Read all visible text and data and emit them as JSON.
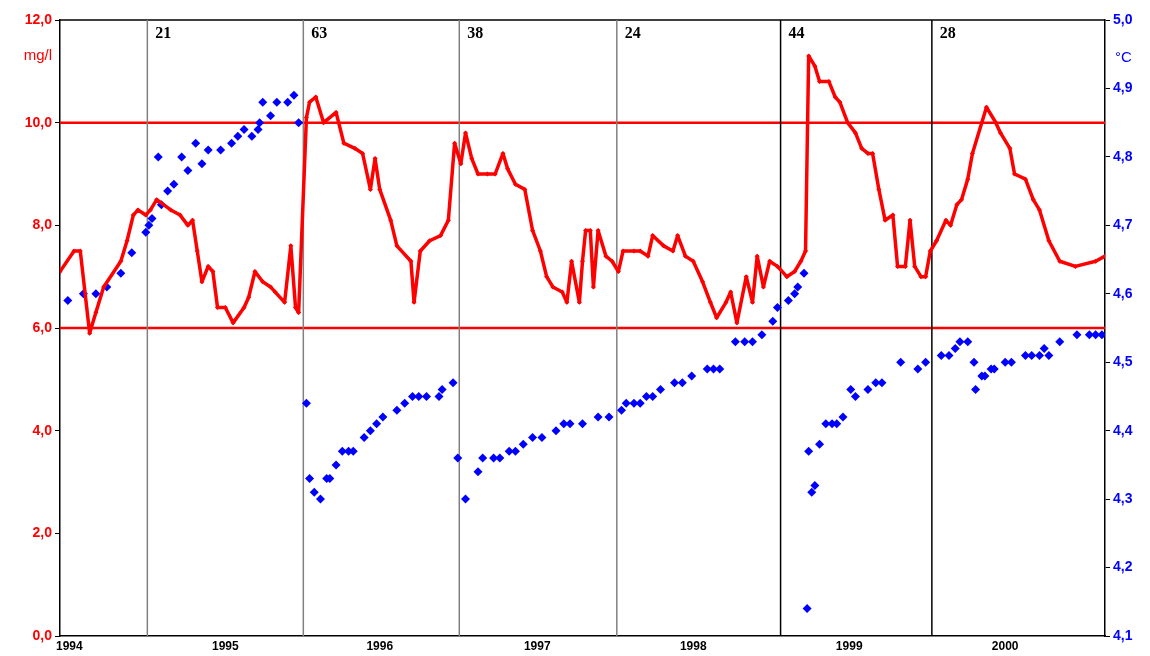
{
  "chart_data": {
    "type": "line",
    "ylabel": "mg/l",
    "y2label": "°C",
    "xlim": [
      1994.44,
      2001.14
    ],
    "xticks": [
      {
        "value": 1994.5,
        "label": "1994"
      },
      {
        "value": 1995.5,
        "label": "1995"
      },
      {
        "value": 1996.49,
        "label": "1996"
      },
      {
        "value": 1997.5,
        "label": "1997"
      },
      {
        "value": 1998.5,
        "label": "1998"
      },
      {
        "value": 1999.5,
        "label": "1999"
      },
      {
        "value": 2000.5,
        "label": "2000"
      }
    ],
    "annotations": [
      {
        "text": "21",
        "x": 1995,
        "y": 12
      },
      {
        "text": "63",
        "x": 1996,
        "y": 12
      },
      {
        "text": "38",
        "x": 1997,
        "y": 12
      },
      {
        "text": "24",
        "x": 1998.01,
        "y": 12
      },
      {
        "text": "44",
        "x": 1999.06,
        "y": 12
      },
      {
        "text": "28",
        "x": 2000.03,
        "y": 12
      }
    ],
    "ylim": [
      0,
      12
    ],
    "yticks": [
      {
        "value": 0,
        "label": "0,0"
      },
      {
        "value": 2,
        "label": "2,0"
      },
      {
        "value": 4,
        "label": "4,0"
      },
      {
        "value": 6,
        "label": "6,0"
      },
      {
        "value": 8,
        "label": "8,0"
      },
      {
        "value": 10,
        "label": "10,0"
      },
      {
        "value": 12,
        "label": "12,0"
      }
    ],
    "y2lim": [
      4.1,
      5.0
    ],
    "y2ticks": [
      {
        "value": 4.1,
        "label": "4,1"
      },
      {
        "value": 4.2,
        "label": "4,2"
      },
      {
        "value": 4.3,
        "label": "4,3"
      },
      {
        "value": 4.4,
        "label": "4,4"
      },
      {
        "value": 4.5,
        "label": "4,5"
      },
      {
        "value": 4.6,
        "label": "4,6"
      },
      {
        "value": 4.7,
        "label": "4,7"
      },
      {
        "value": 4.8,
        "label": "4,8"
      },
      {
        "value": 4.9,
        "label": "4,9"
      },
      {
        "value": 5.0,
        "label": "5,0"
      }
    ],
    "grid": false,
    "legend": false,
    "ref_lines": [
      {
        "axis": "y",
        "value": 10,
        "color": "#ff0000"
      },
      {
        "axis": "y",
        "value": 6,
        "color": "#ff0000"
      },
      {
        "axis": "x",
        "value": 1995,
        "color": "#808080"
      },
      {
        "axis": "x",
        "value": 1996,
        "color": "#808080"
      },
      {
        "axis": "x",
        "value": 1997,
        "color": "#808080"
      },
      {
        "axis": "x",
        "value": 1998.01,
        "color": "#808080"
      },
      {
        "axis": "x",
        "value": 1999.06,
        "color": "#000000"
      },
      {
        "axis": "x",
        "value": 2000.03,
        "color": "#000000"
      }
    ],
    "series": [
      {
        "axis": "y",
        "color": "#ff0000",
        "marker": "diamond",
        "line_style": "solid",
        "x": [
          1994.44,
          1994.53,
          1994.57,
          1994.63,
          1994.67,
          1994.72,
          1994.83,
          1994.87,
          1994.91,
          1994.94,
          1994.99,
          1995.02,
          1995.06,
          1995.15,
          1995.21,
          1995.26,
          1995.29,
          1995.32,
          1995.35,
          1995.39,
          1995.42,
          1995.45,
          1995.5,
          1995.55,
          1995.62,
          1995.65,
          1995.69,
          1995.74,
          1995.79,
          1995.82,
          1995.88,
          1995.92,
          1995.95,
          1995.97,
          1996.02,
          1996.04,
          1996.08,
          1996.13,
          1996.21,
          1996.26,
          1996.33,
          1996.38,
          1996.43,
          1996.46,
          1996.49,
          1996.56,
          1996.6,
          1996.69,
          1996.71,
          1996.75,
          1996.81,
          1996.88,
          1996.93,
          1996.97,
          1997.01,
          1997.04,
          1997.08,
          1997.12,
          1997.18,
          1997.23,
          1997.28,
          1997.31,
          1997.36,
          1997.42,
          1997.47,
          1997.52,
          1997.56,
          1997.6,
          1997.66,
          1997.69,
          1997.72,
          1997.77,
          1997.79,
          1997.81,
          1997.84,
          1997.86,
          1997.89,
          1997.94,
          1997.98,
          1998.02,
          1998.05,
          1998.12,
          1998.16,
          1998.21,
          1998.24,
          1998.31,
          1998.37,
          1998.4,
          1998.45,
          1998.5,
          1998.56,
          1998.61,
          1998.65,
          1998.71,
          1998.74,
          1998.78,
          1998.84,
          1998.88,
          1998.91,
          1998.95,
          1998.99,
          1999.04,
          1999.1,
          1999.15,
          1999.19,
          1999.22,
          1999.24,
          1999.28,
          1999.31,
          1999.37,
          1999.41,
          1999.44,
          1999.49,
          1999.54,
          1999.58,
          1999.62,
          1999.65,
          1999.69,
          1999.73,
          1999.78,
          1999.81,
          1999.86,
          1999.89,
          1999.92,
          1999.96,
          1999.99,
          2000.02,
          2000.06,
          2000.12,
          2000.15,
          2000.19,
          2000.22,
          2000.26,
          2000.29,
          2000.38,
          2000.44,
          2000.47,
          2000.53,
          2000.56,
          2000.63,
          2000.68,
          2000.72,
          2000.78,
          2000.85,
          2000.95,
          2001.08,
          2001.14
        ],
        "values": [
          7.1,
          7.5,
          7.5,
          5.9,
          6.3,
          6.8,
          7.3,
          7.7,
          8.2,
          8.3,
          8.2,
          8.3,
          8.5,
          8.3,
          8.2,
          8.0,
          8.1,
          7.5,
          6.9,
          7.2,
          7.1,
          6.4,
          6.4,
          6.1,
          6.4,
          6.6,
          7.1,
          6.9,
          6.8,
          6.7,
          6.5,
          7.6,
          6.4,
          6.3,
          10.1,
          10.4,
          10.5,
          10.0,
          10.2,
          9.6,
          9.5,
          9.4,
          8.7,
          9.3,
          8.7,
          8.1,
          7.6,
          7.3,
          6.5,
          7.5,
          7.7,
          7.8,
          8.1,
          9.6,
          9.2,
          9.8,
          9.3,
          9.0,
          9.0,
          9.0,
          9.4,
          9.1,
          8.8,
          8.7,
          7.9,
          7.5,
          7.0,
          6.8,
          6.7,
          6.5,
          7.3,
          6.5,
          7.3,
          7.9,
          7.9,
          6.8,
          7.9,
          7.4,
          7.3,
          7.1,
          7.5,
          7.5,
          7.5,
          7.4,
          7.8,
          7.6,
          7.5,
          7.8,
          7.4,
          7.3,
          6.9,
          6.5,
          6.2,
          6.5,
          6.7,
          6.1,
          7.0,
          6.5,
          7.4,
          6.8,
          7.3,
          7.2,
          7.0,
          7.1,
          7.3,
          7.5,
          11.3,
          11.1,
          10.8,
          10.8,
          10.5,
          10.4,
          10.0,
          9.8,
          9.5,
          9.4,
          9.4,
          8.7,
          8.1,
          8.2,
          7.2,
          7.2,
          8.1,
          7.2,
          7.0,
          7.0,
          7.5,
          7.7,
          8.1,
          8.0,
          8.4,
          8.5,
          8.9,
          9.4,
          10.3,
          10.0,
          9.8,
          9.5,
          9.0,
          8.9,
          8.5,
          8.3,
          7.7,
          7.3,
          7.2,
          7.3,
          7.4
        ]
      },
      {
        "type": "scatter",
        "axis": "y2",
        "color": "#0000ff",
        "marker": "diamond",
        "x": [
          1994.49,
          1994.59,
          1994.67,
          1994.74,
          1994.83,
          1994.9,
          1994.99,
          1995.01,
          1995.03,
          1995.07,
          1995.09,
          1995.13,
          1995.17,
          1995.22,
          1995.26,
          1995.31,
          1995.35,
          1995.39,
          1995.47,
          1995.54,
          1995.58,
          1995.62,
          1995.67,
          1995.71,
          1995.72,
          1995.74,
          1995.79,
          1995.83,
          1995.9,
          1995.94,
          1995.97,
          1996.02,
          1996.04,
          1996.07,
          1996.11,
          1996.15,
          1996.17,
          1996.21,
          1996.25,
          1996.29,
          1996.32,
          1996.39,
          1996.43,
          1996.47,
          1996.51,
          1996.6,
          1996.65,
          1996.7,
          1996.74,
          1996.79,
          1996.87,
          1996.89,
          1996.96,
          1996.99,
          1997.04,
          1997.12,
          1997.15,
          1997.22,
          1997.26,
          1997.32,
          1997.36,
          1997.41,
          1997.47,
          1997.53,
          1997.62,
          1997.67,
          1997.71,
          1997.79,
          1997.89,
          1997.96,
          1998.04,
          1998.07,
          1998.12,
          1998.16,
          1998.2,
          1998.24,
          1998.29,
          1998.38,
          1998.43,
          1998.49,
          1998.59,
          1998.63,
          1998.67,
          1998.77,
          1998.83,
          1998.88,
          1998.94,
          1999.01,
          1999.04,
          1999.11,
          1999.15,
          1999.17,
          1999.21,
          1999.23,
          1999.24,
          1999.26,
          1999.28,
          1999.31,
          1999.35,
          1999.39,
          1999.42,
          1999.46,
          1999.51,
          1999.54,
          1999.62,
          1999.67,
          1999.71,
          1999.83,
          1999.94,
          1999.99,
          2000.09,
          2000.14,
          2000.18,
          2000.21,
          2000.26,
          2000.3,
          2000.31,
          2000.35,
          2000.37,
          2000.41,
          2000.43,
          2000.5,
          2000.54,
          2000.63,
          2000.67,
          2000.72,
          2000.75,
          2000.78,
          2000.85,
          2000.96,
          2001.04,
          2001.08,
          2001.12
        ],
        "values": [
          4.59,
          4.6,
          4.6,
          4.61,
          4.63,
          4.66,
          4.69,
          4.7,
          4.71,
          4.8,
          4.73,
          4.75,
          4.76,
          4.8,
          4.78,
          4.82,
          4.79,
          4.81,
          4.81,
          4.82,
          4.83,
          4.84,
          4.83,
          4.84,
          4.85,
          4.88,
          4.86,
          4.88,
          4.88,
          4.89,
          4.85,
          4.44,
          4.33,
          4.31,
          4.3,
          4.33,
          4.33,
          4.35,
          4.37,
          4.37,
          4.37,
          4.39,
          4.4,
          4.41,
          4.42,
          4.43,
          4.44,
          4.45,
          4.45,
          4.45,
          4.45,
          4.46,
          4.47,
          4.36,
          4.3,
          4.34,
          4.36,
          4.36,
          4.36,
          4.37,
          4.37,
          4.38,
          4.39,
          4.39,
          4.4,
          4.41,
          4.41,
          4.41,
          4.42,
          4.42,
          4.43,
          4.44,
          4.44,
          4.44,
          4.45,
          4.45,
          4.46,
          4.47,
          4.47,
          4.48,
          4.49,
          4.49,
          4.49,
          4.53,
          4.53,
          4.53,
          4.54,
          4.56,
          4.58,
          4.59,
          4.6,
          4.61,
          4.63,
          4.14,
          4.37,
          4.31,
          4.32,
          4.38,
          4.41,
          4.41,
          4.41,
          4.42,
          4.46,
          4.45,
          4.46,
          4.47,
          4.47,
          4.5,
          4.49,
          4.5,
          4.51,
          4.51,
          4.52,
          4.53,
          4.53,
          4.5,
          4.46,
          4.48,
          4.48,
          4.49,
          4.49,
          4.5,
          4.5,
          4.51,
          4.51,
          4.51,
          4.52,
          4.51,
          4.53,
          4.54,
          4.54,
          4.54,
          4.54
        ]
      }
    ]
  }
}
